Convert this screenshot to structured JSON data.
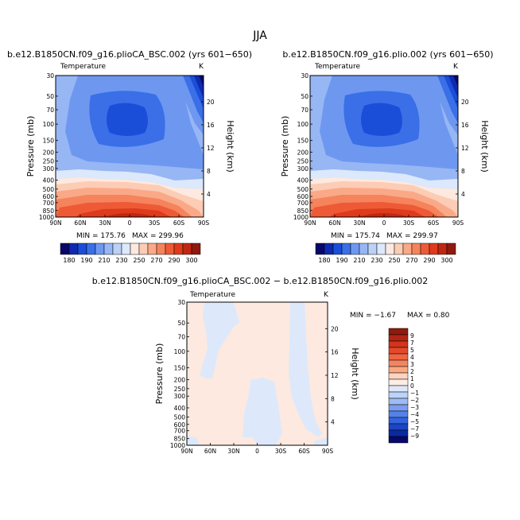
{
  "title": "JJA",
  "chart_data": [
    {
      "type": "heatmap",
      "title": "b.e12.B1850CN.f09_g16.plioCA_BSC.002 (yrs 601−650)",
      "field_label": "Temperature",
      "units": "K",
      "ylabel": "Pressure (mb)",
      "ylabel_right": "Height (km)",
      "x_ticks": [
        "90N",
        "60N",
        "30N",
        "0",
        "30S",
        "60S",
        "90S"
      ],
      "y_ticks": [
        "30",
        "50",
        "70",
        "100",
        "150",
        "200",
        "250",
        "300",
        "400",
        "500",
        "600",
        "700",
        "850",
        "1000"
      ],
      "y_right_ticks": [
        "20",
        "16",
        "12",
        "8",
        "4"
      ],
      "y_log": true,
      "min_label": "MIN = 175.76",
      "max_label": "MAX = 299.96",
      "min": 175.76,
      "max": 299.96,
      "colorbar": {
        "labels": [
          "180",
          "190",
          "210",
          "230",
          "250",
          "270",
          "290",
          "300"
        ],
        "colors": [
          "#08086b",
          "#0f2ab0",
          "#1b4ed8",
          "#3a6fe8",
          "#6e98f0",
          "#97b6f4",
          "#bdd1f7",
          "#dce8fb",
          "#fde9df",
          "#fcccb5",
          "#faa988",
          "#f5835c",
          "#ee5a36",
          "#de3a1c",
          "#c02712",
          "#8f1a0e"
        ]
      }
    },
    {
      "type": "heatmap",
      "title": "b.e12.B1850CN.f09_g16.plio.002 (yrs 601−650)",
      "field_label": "Temperature",
      "units": "K",
      "ylabel": "Pressure (mb)",
      "ylabel_right": "Height (km)",
      "x_ticks": [
        "90N",
        "60N",
        "30N",
        "0",
        "30S",
        "60S",
        "90S"
      ],
      "y_ticks": [
        "30",
        "50",
        "70",
        "100",
        "150",
        "200",
        "250",
        "300",
        "400",
        "500",
        "600",
        "700",
        "850",
        "1000"
      ],
      "y_right_ticks": [
        "20",
        "16",
        "12",
        "8",
        "4"
      ],
      "y_log": true,
      "min_label": "MIN = 175.74",
      "max_label": "MAX = 299.97",
      "min": 175.74,
      "max": 299.97,
      "colorbar": {
        "labels": [
          "180",
          "190",
          "210",
          "230",
          "250",
          "270",
          "290",
          "300"
        ],
        "colors": [
          "#08086b",
          "#0f2ab0",
          "#1b4ed8",
          "#3a6fe8",
          "#6e98f0",
          "#97b6f4",
          "#bdd1f7",
          "#dce8fb",
          "#fde9df",
          "#fcccb5",
          "#faa988",
          "#f5835c",
          "#ee5a36",
          "#de3a1c",
          "#c02712",
          "#8f1a0e"
        ]
      }
    },
    {
      "type": "heatmap",
      "title": "b.e12.B1850CN.f09_g16.plioCA_BSC.002 − b.e12.B1850CN.f09_g16.plio.002",
      "field_label": "Temperature",
      "units": "K",
      "ylabel": "Pressure (mb)",
      "ylabel_right": "Height (km)",
      "x_ticks": [
        "90N",
        "60N",
        "30N",
        "0",
        "30S",
        "60S",
        "90S"
      ],
      "y_ticks": [
        "30",
        "50",
        "70",
        "100",
        "150",
        "200",
        "250",
        "300",
        "400",
        "500",
        "600",
        "700",
        "850",
        "1000"
      ],
      "y_right_ticks": [
        "20",
        "16",
        "12",
        "8",
        "4"
      ],
      "y_log": true,
      "min_label": "MIN =   −1.67",
      "max_label": "MAX =    0.80",
      "min": -1.67,
      "max": 0.8,
      "colorbar": {
        "labels": [
          "9",
          "7",
          "5",
          "4",
          "3",
          "2",
          "1",
          "0",
          "−1",
          "−2",
          "−3",
          "−4",
          "−5",
          "−7",
          "−9"
        ],
        "colors": [
          "#8f1a0e",
          "#b32413",
          "#d1351b",
          "#e4492a",
          "#ef6543",
          "#f5855f",
          "#f9a883",
          "#fcd3bf",
          "#fdeee4",
          "#dde9fb",
          "#bed3f8",
          "#9fbaf4",
          "#7a9df0",
          "#5582e8",
          "#3264dd",
          "#1b45c6",
          "#0a2aa0",
          "#08086b"
        ]
      }
    }
  ]
}
